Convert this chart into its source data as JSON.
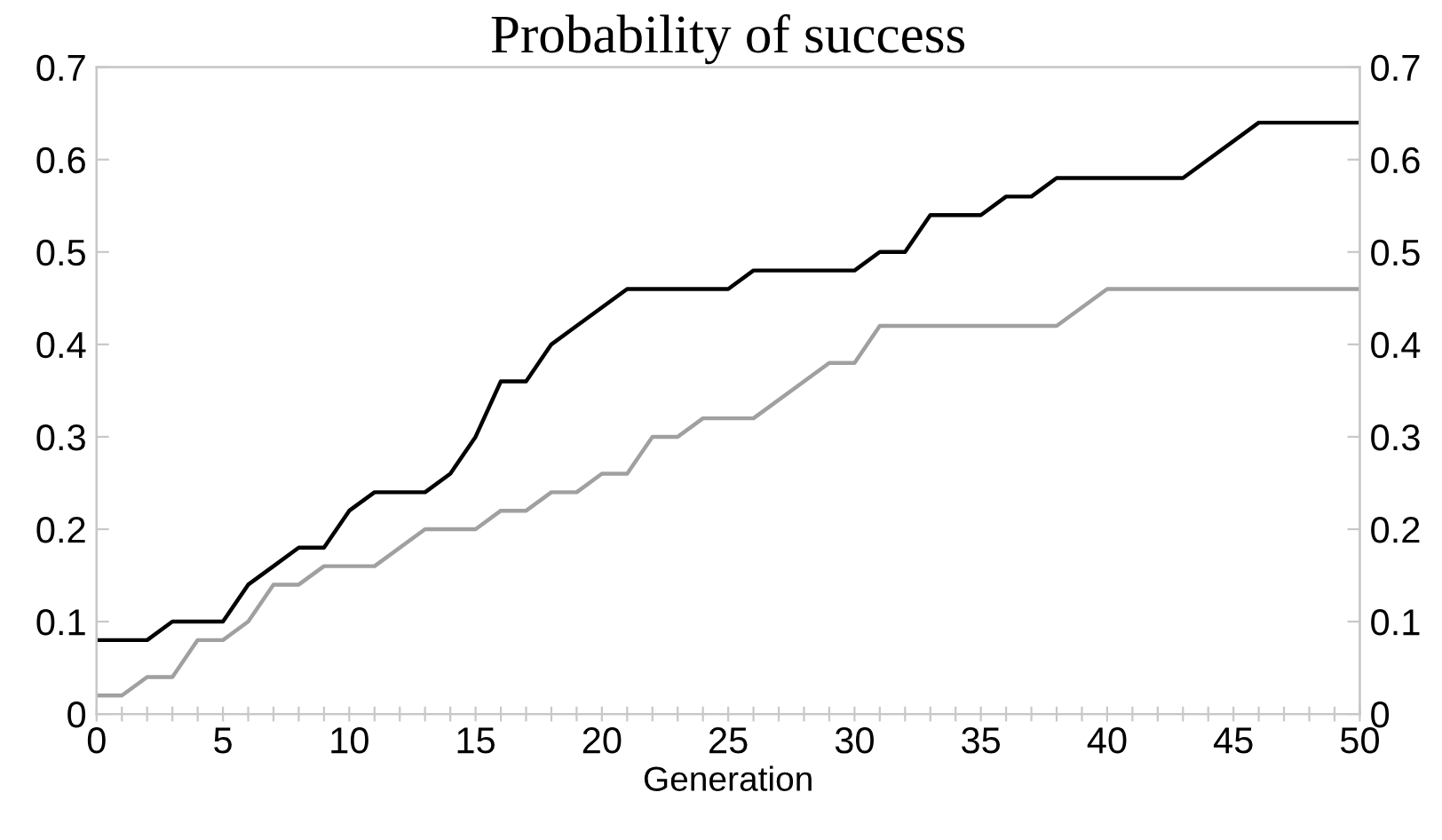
{
  "chart_data": {
    "type": "line",
    "title": "Probability of success",
    "xlabel": "Generation",
    "xlim": [
      0,
      50
    ],
    "ylim": [
      0,
      0.7
    ],
    "y2lim": [
      0,
      0.7
    ],
    "xticks": [
      0,
      {
        "value": 1,
        "label": null
      },
      {
        "value": 2,
        "label": null
      },
      {
        "value": 3,
        "label": null
      },
      {
        "value": 4,
        "label": null
      },
      5,
      {
        "value": 6,
        "label": null
      },
      {
        "value": 7,
        "label": null
      },
      {
        "value": 8,
        "label": null
      },
      {
        "value": 9,
        "label": null
      },
      10,
      {
        "value": 11,
        "label": null
      },
      {
        "value": 12,
        "label": null
      },
      {
        "value": 13,
        "label": null
      },
      {
        "value": 14,
        "label": null
      },
      15,
      {
        "value": 16,
        "label": null
      },
      {
        "value": 17,
        "label": null
      },
      {
        "value": 18,
        "label": null
      },
      {
        "value": 19,
        "label": null
      },
      20,
      {
        "value": 21,
        "label": null
      },
      {
        "value": 22,
        "label": null
      },
      {
        "value": 23,
        "label": null
      },
      {
        "value": 24,
        "label": null
      },
      25,
      {
        "value": 26,
        "label": null
      },
      {
        "value": 27,
        "label": null
      },
      {
        "value": 28,
        "label": null
      },
      {
        "value": 29,
        "label": null
      },
      30,
      {
        "value": 31,
        "label": null
      },
      {
        "value": 32,
        "label": null
      },
      {
        "value": 33,
        "label": null
      },
      {
        "value": 34,
        "label": null
      },
      35,
      {
        "value": 36,
        "label": null
      },
      {
        "value": 37,
        "label": null
      },
      {
        "value": 38,
        "label": null
      },
      {
        "value": 39,
        "label": null
      },
      40,
      {
        "value": 41,
        "label": null
      },
      {
        "value": 42,
        "label": null
      },
      {
        "value": 43,
        "label": null
      },
      {
        "value": 44,
        "label": null
      },
      45,
      {
        "value": 46,
        "label": null
      },
      {
        "value": 47,
        "label": null
      },
      {
        "value": 48,
        "label": null
      },
      {
        "value": 49,
        "label": null
      },
      50
    ],
    "yticks": [
      0,
      0.1,
      0.2,
      0.3,
      0.4,
      0.5,
      0.6,
      0.7
    ],
    "y2ticks": [
      0,
      0.1,
      0.2,
      0.3,
      0.4,
      0.5,
      0.6,
      0.7
    ],
    "grid": false,
    "marker": "none",
    "line_style": "solid",
    "series": [
      {
        "color": "#000000",
        "x": [
          0,
          2,
          3,
          5,
          6,
          7,
          8,
          9,
          10,
          11,
          13,
          14,
          15,
          16,
          17,
          18,
          19,
          20,
          21,
          25,
          26,
          30,
          31,
          32,
          33,
          35,
          36,
          37,
          38,
          43,
          46,
          50
        ],
        "values": [
          0.08,
          0.08,
          0.1,
          0.1,
          0.14,
          0.16,
          0.18,
          0.18,
          0.22,
          0.24,
          0.24,
          0.26,
          0.3,
          0.36,
          0.36,
          0.4,
          0.42,
          0.44,
          0.46,
          0.46,
          0.48,
          0.48,
          0.5,
          0.5,
          0.54,
          0.54,
          0.56,
          0.56,
          0.58,
          0.58,
          0.64,
          0.64
        ]
      },
      {
        "color": "#a0a0a0",
        "x": [
          0,
          1,
          2,
          3,
          4,
          5,
          6,
          7,
          8,
          9,
          11,
          13,
          15,
          16,
          17,
          18,
          19,
          20,
          21,
          22,
          23,
          24,
          26,
          29,
          30,
          31,
          38,
          40,
          50
        ],
        "values": [
          0.02,
          0.02,
          0.04,
          0.04,
          0.08,
          0.08,
          0.1,
          0.14,
          0.14,
          0.16,
          0.16,
          0.2,
          0.2,
          0.22,
          0.22,
          0.24,
          0.24,
          0.26,
          0.26,
          0.3,
          0.3,
          0.32,
          0.32,
          0.38,
          0.38,
          0.42,
          0.42,
          0.46,
          0.46
        ]
      }
    ]
  }
}
